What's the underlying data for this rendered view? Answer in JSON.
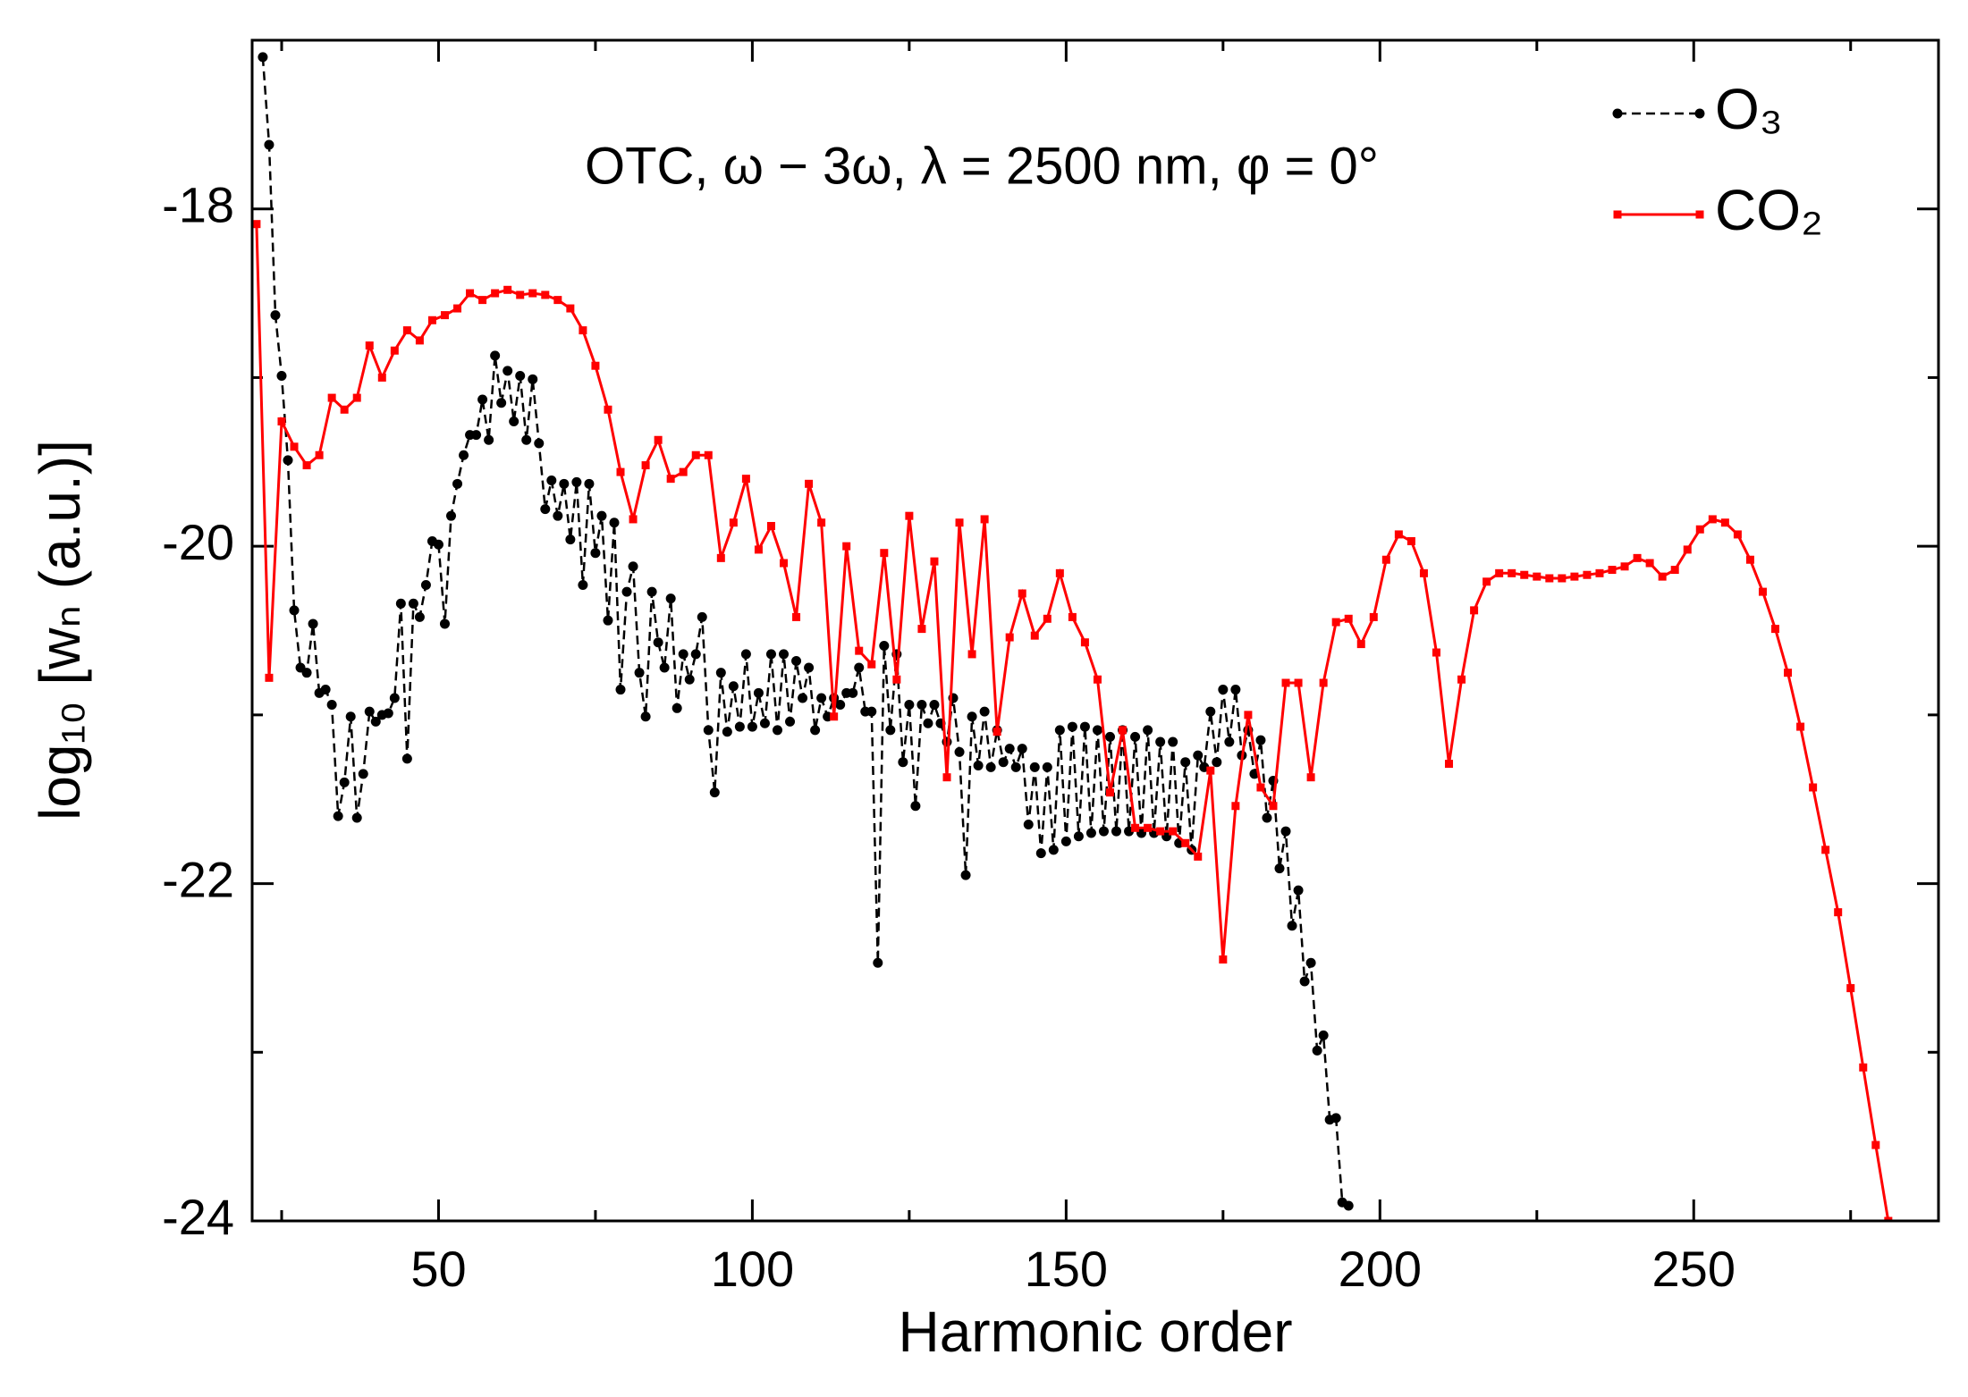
{
  "chart_data": {
    "type": "line",
    "title": "OTC,  ω − 3ω, λ = 2500 nm, φ = 0°",
    "xlabel": "Harmonic order",
    "ylabel": "log₁₀ [wₙ (a.u.)]",
    "xlim": [
      20.3,
      289
    ],
    "ylim": [
      -24,
      -17
    ],
    "xticks": [
      50,
      100,
      150,
      200,
      250
    ],
    "xticks_minor": [
      25,
      75,
      125,
      175,
      225,
      275
    ],
    "yticks": [
      -24,
      -22,
      -20,
      -18
    ],
    "yticks_minor": [
      -23,
      -21,
      -19
    ],
    "legend": "upper right",
    "series": [
      {
        "name": "O₃",
        "color": "#000000",
        "marker": "circle",
        "linestyle": "dashed",
        "x": [
          22,
          23,
          24,
          25,
          26,
          27,
          28,
          29,
          30,
          31,
          32,
          33,
          34,
          35,
          36,
          37,
          38,
          39,
          40,
          41,
          42,
          43,
          44,
          45,
          46,
          47,
          48,
          49,
          50,
          51,
          52,
          53,
          54,
          55,
          56,
          57,
          58,
          59,
          60,
          61,
          62,
          63,
          64,
          65,
          66,
          67,
          68,
          69,
          70,
          71,
          72,
          73,
          74,
          75,
          76,
          77,
          78,
          79,
          80,
          81,
          82,
          83,
          84,
          85,
          86,
          87,
          88,
          89,
          90,
          91,
          92,
          93,
          94,
          95,
          96,
          97,
          98,
          99,
          100,
          101,
          102,
          103,
          104,
          105,
          106,
          107,
          108,
          109,
          110,
          111,
          112,
          113,
          114,
          115,
          116,
          117,
          118,
          119,
          120,
          121,
          122,
          123,
          124,
          125,
          126,
          127,
          128,
          129,
          130,
          131,
          132,
          133,
          134,
          135,
          136,
          137,
          138,
          139,
          140,
          141,
          142,
          143,
          144,
          145,
          146,
          147,
          148,
          149,
          150,
          151,
          152,
          153,
          154,
          155,
          156,
          157,
          158,
          159,
          160,
          161,
          162,
          163,
          164,
          165,
          166,
          167,
          168,
          169,
          170,
          171,
          172,
          173,
          174,
          175,
          176,
          177,
          178,
          179,
          180,
          181,
          182,
          183,
          184,
          185,
          186,
          187,
          188,
          189,
          190,
          191,
          192,
          193,
          194,
          195
        ],
        "values": [
          -17.1,
          -17.62,
          -18.63,
          -18.99,
          -19.49,
          -20.38,
          -20.72,
          -20.75,
          -20.46,
          -20.87,
          -20.85,
          -20.94,
          -21.6,
          -21.4,
          -21.01,
          -21.61,
          -21.35,
          -20.98,
          -21.04,
          -21.0,
          -20.99,
          -20.9,
          -20.34,
          -21.26,
          -20.34,
          -20.42,
          -20.23,
          -19.97,
          -19.99,
          -20.46,
          -19.82,
          -19.63,
          -19.46,
          -19.34,
          -19.34,
          -19.13,
          -19.37,
          -18.87,
          -19.15,
          -18.96,
          -19.26,
          -18.99,
          -19.37,
          -19.01,
          -19.39,
          -19.78,
          -19.61,
          -19.82,
          -19.63,
          -19.96,
          -19.62,
          -20.23,
          -19.63,
          -20.04,
          -19.82,
          -20.44,
          -19.86,
          -20.85,
          -20.27,
          -20.12,
          -20.75,
          -21.01,
          -20.27,
          -20.57,
          -20.72,
          -20.31,
          -20.96,
          -20.64,
          -20.79,
          -20.64,
          -20.42,
          -21.09,
          -21.46,
          -20.75,
          -21.1,
          -20.83,
          -21.07,
          -20.64,
          -21.07,
          -20.87,
          -21.05,
          -20.64,
          -21.09,
          -20.64,
          -21.04,
          -20.68,
          -20.9,
          -20.72,
          -21.09,
          -20.9,
          -21.01,
          -20.9,
          -20.94,
          -20.87,
          -20.87,
          -20.72,
          -20.98,
          -20.98,
          -22.47,
          -20.59,
          -21.09,
          -20.64,
          -21.28,
          -20.94,
          -21.54,
          -20.94,
          -21.05,
          -20.94,
          -21.05,
          -21.16,
          -20.9,
          -21.22,
          -21.95,
          -21.01,
          -21.3,
          -20.98,
          -21.31,
          -21.09,
          -21.28,
          -21.2,
          -21.31,
          -21.2,
          -21.65,
          -21.31,
          -21.82,
          -21.31,
          -21.8,
          -21.09,
          -21.75,
          -21.07,
          -21.72,
          -21.07,
          -21.7,
          -21.09,
          -21.69,
          -21.13,
          -21.69,
          -21.09,
          -21.69,
          -21.13,
          -21.7,
          -21.09,
          -21.7,
          -21.16,
          -21.72,
          -21.16,
          -21.76,
          -21.28,
          -21.8,
          -21.24,
          -21.31,
          -20.98,
          -21.28,
          -20.85,
          -21.16,
          -20.85,
          -21.24,
          -21.09,
          -21.35,
          -21.15,
          -21.61,
          -21.39,
          -21.91,
          -21.69,
          -22.25,
          -22.04,
          -22.58,
          -22.47,
          -22.99,
          -22.9,
          -23.4,
          -23.39,
          -23.89,
          -23.91
        ]
      },
      {
        "name": "CO₂",
        "color": "#ff0000",
        "marker": "square",
        "linestyle": "solid",
        "x": [
          21,
          23,
          25,
          27,
          29,
          31,
          33,
          35,
          37,
          39,
          41,
          43,
          45,
          47,
          49,
          51,
          53,
          55,
          57,
          59,
          61,
          63,
          65,
          67,
          69,
          71,
          73,
          75,
          77,
          79,
          81,
          83,
          85,
          87,
          89,
          91,
          93,
          95,
          97,
          99,
          101,
          103,
          105,
          107,
          109,
          111,
          113,
          115,
          117,
          119,
          121,
          123,
          125,
          127,
          129,
          131,
          133,
          135,
          137,
          139,
          141,
          143,
          145,
          147,
          149,
          151,
          153,
          155,
          157,
          159,
          161,
          163,
          165,
          167,
          169,
          171,
          173,
          175,
          177,
          179,
          181,
          183,
          185,
          187,
          189,
          191,
          193,
          195,
          197,
          199,
          201,
          203,
          205,
          207,
          209,
          211,
          213,
          215,
          217,
          219,
          221,
          223,
          225,
          227,
          229,
          231,
          233,
          235,
          237,
          239,
          241,
          243,
          245,
          247,
          249,
          251,
          253,
          255,
          257,
          259,
          261,
          263,
          265,
          267,
          269,
          271,
          273,
          275,
          277,
          279,
          281
        ],
        "values": [
          -18.09,
          -20.78,
          -19.26,
          -19.41,
          -19.52,
          -19.46,
          -19.12,
          -19.19,
          -19.12,
          -18.81,
          -19.0,
          -18.84,
          -18.72,
          -18.78,
          -18.66,
          -18.63,
          -18.59,
          -18.5,
          -18.54,
          -18.5,
          -18.48,
          -18.51,
          -18.5,
          -18.51,
          -18.54,
          -18.59,
          -18.72,
          -18.93,
          -19.19,
          -19.56,
          -19.84,
          -19.52,
          -19.37,
          -19.6,
          -19.56,
          -19.46,
          -19.46,
          -20.07,
          -19.86,
          -19.6,
          -20.02,
          -19.88,
          -20.1,
          -20.42,
          -19.63,
          -19.86,
          -21.01,
          -20.0,
          -20.62,
          -20.7,
          -20.04,
          -20.79,
          -19.82,
          -20.49,
          -20.09,
          -21.37,
          -19.86,
          -20.64,
          -19.84,
          -21.1,
          -20.54,
          -20.28,
          -20.53,
          -20.43,
          -20.16,
          -20.42,
          -20.57,
          -20.79,
          -21.46,
          -21.09,
          -21.67,
          -21.67,
          -21.69,
          -21.69,
          -21.76,
          -21.84,
          -21.33,
          -22.45,
          -21.54,
          -21.0,
          -21.43,
          -21.54,
          -20.81,
          -20.81,
          -21.37,
          -20.81,
          -20.45,
          -20.43,
          -20.58,
          -20.42,
          -20.08,
          -19.93,
          -19.97,
          -20.16,
          -20.63,
          -21.29,
          -20.79,
          -20.38,
          -20.21,
          -20.16,
          -20.16,
          -20.17,
          -20.18,
          -20.19,
          -20.19,
          -20.18,
          -20.17,
          -20.16,
          -20.14,
          -20.12,
          -20.07,
          -20.1,
          -20.18,
          -20.14,
          -20.02,
          -19.9,
          -19.84,
          -19.86,
          -19.93,
          -20.08,
          -20.27,
          -20.49,
          -20.75,
          -21.07,
          -21.43,
          -21.8,
          -22.17,
          -22.62,
          -23.09,
          -23.55,
          -24.0
        ]
      }
    ]
  }
}
